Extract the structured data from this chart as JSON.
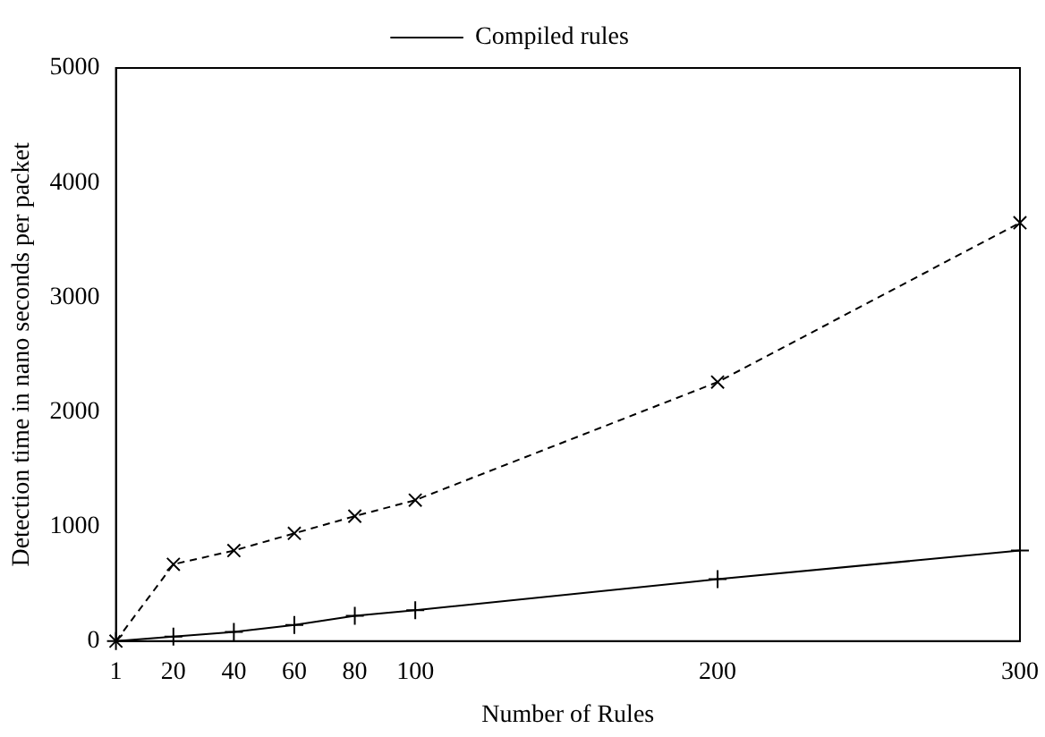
{
  "chart_data": {
    "type": "line",
    "xlabel": "Number of Rules",
    "ylabel": "Detection time in nano seconds per packet",
    "x": [
      1,
      20,
      40,
      60,
      80,
      100,
      200,
      300
    ],
    "series": [
      {
        "name": "Compiled rules",
        "color": "#000000",
        "marker": "cross",
        "line_style": "solid",
        "values": [
          0,
          40,
          80,
          140,
          220,
          270,
          540,
          790
        ]
      },
      {
        "color": "#000000",
        "marker": "x",
        "line_style": "dashed",
        "values": [
          0,
          670,
          790,
          940,
          1090,
          1230,
          2260,
          3650
        ]
      }
    ],
    "xlim": [
      1,
      300
    ],
    "xticks": [
      1,
      20,
      40,
      60,
      80,
      100,
      200,
      300
    ],
    "ylim": [
      0,
      5000
    ],
    "yticks": [
      0,
      1000,
      2000,
      3000,
      4000,
      5000
    ],
    "grid": false,
    "legend": "top"
  }
}
